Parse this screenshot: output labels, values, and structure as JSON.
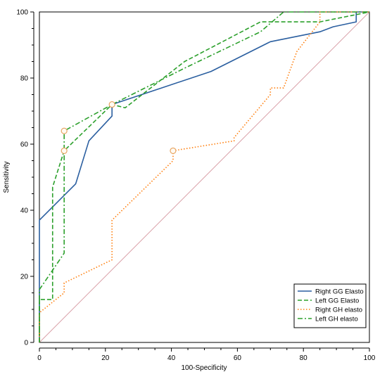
{
  "chart_data": {
    "type": "line",
    "xlabel": "100-Specificity",
    "ylabel": "Sensitivity",
    "xlim": [
      0,
      100
    ],
    "ylim": [
      0,
      100
    ],
    "x_ticks": [
      0,
      20,
      40,
      60,
      80,
      100
    ],
    "y_ticks": [
      0,
      20,
      40,
      60,
      80,
      100
    ],
    "x_tick_labels": [
      "0",
      "20",
      "40",
      "60",
      "80",
      "100"
    ],
    "y_tick_labels": [
      "0",
      "20",
      "40",
      "60",
      "80",
      "100"
    ],
    "grid": false,
    "legend_position": "bottom-right",
    "reference_line": {
      "from": [
        0,
        0
      ],
      "to": [
        100,
        100
      ],
      "color": "#d9a0a8"
    },
    "series": [
      {
        "name": "Right GG Elasto",
        "color": "#2b5fa0",
        "style": "solid",
        "x": [
          0,
          0,
          11,
          11,
          15,
          15,
          22,
          22,
          37,
          52,
          70,
          85,
          89,
          96,
          96,
          100
        ],
        "y": [
          0,
          37,
          48,
          48,
          61,
          61,
          68.5,
          72,
          77,
          82,
          91,
          94,
          95.5,
          97,
          100,
          100
        ],
        "markers": []
      },
      {
        "name": "Left GG Elasto",
        "color": "#2ca02c",
        "style": "dashed",
        "x": [
          0,
          0,
          4,
          4,
          7.5,
          7.5,
          22,
          22,
          26,
          44,
          67,
          70,
          85,
          100
        ],
        "y": [
          0,
          13,
          13,
          47,
          58,
          58,
          72,
          72,
          71,
          85,
          97,
          97,
          97,
          100
        ],
        "markers": [
          [
            7.5,
            58
          ],
          [
            22,
            72
          ]
        ]
      },
      {
        "name": "Right GH elasto",
        "color": "#ff7f0e",
        "style": "dotted",
        "x": [
          0,
          0,
          7.5,
          7.5,
          22,
          22,
          40.5,
          40.5,
          59,
          59,
          70,
          70,
          74,
          74,
          78,
          85,
          85,
          100
        ],
        "y": [
          0,
          9,
          15,
          18,
          25,
          37,
          55,
          58,
          61,
          62,
          75,
          77,
          77,
          77,
          88,
          97,
          100,
          100
        ],
        "markers": [
          [
            40.5,
            58
          ]
        ]
      },
      {
        "name": "Left GH elasto",
        "color": "#2ca02c",
        "style": "dashdot",
        "x": [
          0,
          0,
          7.5,
          7.5,
          22,
          44,
          67,
          74,
          100
        ],
        "y": [
          0,
          16,
          27,
          64,
          72,
          83,
          94,
          100,
          100
        ],
        "markers": [
          [
            7.5,
            64
          ]
        ]
      }
    ]
  }
}
